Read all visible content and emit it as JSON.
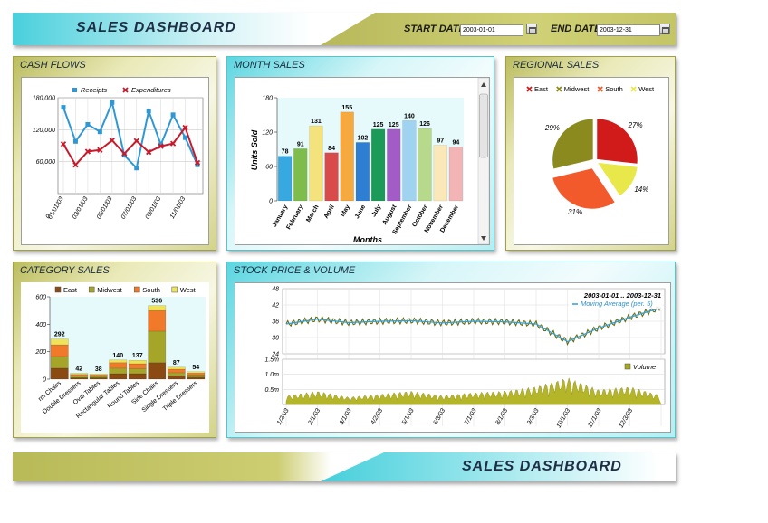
{
  "header": {
    "title": "SALES DASHBOARD",
    "start_label": "START DATE",
    "start_value": "2003-01-01",
    "end_label": "END DATE",
    "end_value": "2003-12-31"
  },
  "footer": {
    "title": "SALES DASHBOARD"
  },
  "panels": {
    "cash_flows": "CASH FLOWS",
    "month_sales": "MONTH SALES",
    "regional_sales": "REGIONAL SALES",
    "category_sales": "CATEGORY SALES",
    "stock": "STOCK PRICE & VOLUME"
  },
  "colors": {
    "olive": "#9c9c1e",
    "cyan": "#44ccd9",
    "receipts": "#2f98d4",
    "expenditures": "#c8192a"
  },
  "chart_data": [
    {
      "id": "cash_flows",
      "type": "line",
      "x": [
        "01/01/03",
        "02/01/03",
        "03/01/03",
        "04/01/03",
        "05/01/03",
        "06/01/03",
        "07/01/03",
        "08/01/03",
        "09/01/03",
        "10/01/03",
        "11/01/03",
        "12/01/03"
      ],
      "x_tick_labels": [
        "01/01/03",
        "03/01/03",
        "05/01/03",
        "07/01/03",
        "09/01/03",
        "11/01/03"
      ],
      "series": [
        {
          "name": "Receipts",
          "color": "#2f98d4",
          "values": [
            162000,
            98000,
            130000,
            116000,
            171000,
            72000,
            48000,
            155000,
            92000,
            148000,
            105000,
            54000
          ]
        },
        {
          "name": "Expenditures",
          "color": "#c8192a",
          "values": [
            93000,
            54000,
            79000,
            82000,
            100000,
            75000,
            99000,
            78000,
            89000,
            94000,
            124000,
            58000
          ]
        }
      ],
      "ylim": [
        0,
        180000
      ],
      "y_ticks": [
        "60,000",
        "120,000",
        "180,000"
      ],
      "y_zero_label": "0",
      "grid": true,
      "legend": "top"
    },
    {
      "id": "month_sales",
      "type": "bar",
      "categories": [
        "January",
        "February",
        "March",
        "April",
        "May",
        "June",
        "July",
        "August",
        "September",
        "October",
        "November",
        "December"
      ],
      "values": [
        78,
        91,
        131,
        84,
        155,
        102,
        125,
        125,
        140,
        126,
        97,
        94
      ],
      "colors": [
        "#37a9e0",
        "#7ebd4b",
        "#f4e27c",
        "#d94b4b",
        "#f5a93f",
        "#2e7fd3",
        "#1c9a58",
        "#a35cc6",
        "#9fd3f0",
        "#b6d98c",
        "#fbe8b8",
        "#f2b4b4"
      ],
      "ylabel": "Units Sold",
      "xlabel": "Months",
      "ylim": [
        0,
        180
      ],
      "y_ticks": [
        "0",
        "60",
        "120",
        "180"
      ]
    },
    {
      "id": "regional_sales",
      "type": "pie",
      "labels": [
        "East",
        "Midwest",
        "South",
        "West"
      ],
      "values": [
        27,
        29,
        31,
        14
      ],
      "slice_labels": [
        "27%",
        "29%",
        "31%",
        "14%"
      ],
      "colors": [
        "#d11b1b",
        "#8a8a1e",
        "#f25a2c",
        "#e8e84a"
      ],
      "legend": "top"
    },
    {
      "id": "category_sales",
      "type": "bar",
      "stacked": true,
      "categories": [
        "Arm Chairs",
        "Double Dressers",
        "Oval Tables",
        "Rectangular Tables",
        "Round Tables",
        "Side Chairs",
        "Single Dressers",
        "Triple Dressers"
      ],
      "category_labels": [
        "rm Chairs",
        "Double Dressers",
        "Oval Tables",
        "Rectangular Tables",
        "Round Tables",
        "Side Chairs",
        "Single Dressers",
        "Triple Dressers"
      ],
      "series": [
        {
          "name": "East",
          "color": "#8a4a12",
          "values": [
            80,
            10,
            10,
            40,
            40,
            120,
            25,
            15
          ]
        },
        {
          "name": "Midwest",
          "color": "#a5a52a",
          "values": [
            85,
            12,
            10,
            40,
            37,
            230,
            22,
            14
          ]
        },
        {
          "name": "South",
          "color": "#f07a2a",
          "values": [
            85,
            12,
            10,
            40,
            35,
            150,
            25,
            15
          ]
        },
        {
          "name": "West",
          "color": "#efe458",
          "values": [
            42,
            8,
            8,
            20,
            25,
            36,
            15,
            10
          ]
        }
      ],
      "totals": [
        292,
        42,
        38,
        140,
        137,
        536,
        87,
        54
      ],
      "ylim": [
        0,
        600
      ],
      "y_ticks": [
        "0",
        "200",
        "400",
        "600"
      ]
    },
    {
      "id": "stock_price",
      "type": "line",
      "annotation": "2003-01-01 .. 2003-12-31",
      "series": [
        {
          "name": "Moving Average (per. 5)",
          "color": "#2fa0d8",
          "x": [
            "1/2/03",
            "2/1/03",
            "3/1/03",
            "4/2/03",
            "5/1/03",
            "6/3/03",
            "7/1/03",
            "8/1/03",
            "9/3/03",
            "10/1/03",
            "11/1/03",
            "12/3/03",
            "12/31/03"
          ],
          "values": [
            35,
            36.8,
            35.5,
            36,
            36.2,
            35.4,
            36,
            35.8,
            35,
            28.5,
            33.5,
            37.5,
            41
          ]
        }
      ],
      "ylim": [
        24,
        48
      ],
      "y_ticks": [
        "24",
        "30",
        "36",
        "42",
        "48"
      ]
    },
    {
      "id": "stock_volume",
      "type": "area",
      "series": [
        {
          "name": "Volume",
          "color": "#a8a820",
          "x": [
            "1/2/03",
            "2/1/03",
            "3/1/03",
            "4/2/03",
            "5/1/03",
            "6/3/03",
            "7/1/03",
            "8/1/03",
            "9/3/03",
            "10/1/03",
            "11/1/03",
            "12/3/03",
            "12/31/03"
          ],
          "values": [
            300000,
            450000,
            250000,
            350000,
            450000,
            300000,
            400000,
            450000,
            600000,
            900000,
            500000,
            600000,
            300000
          ]
        }
      ],
      "ylim": [
        0,
        1500000
      ],
      "y_ticks": [
        "0.5m",
        "1.0m",
        "1.5m"
      ],
      "x_tick_labels": [
        "1/2/03",
        "2/1/03",
        "3/1/03",
        "4/2/03",
        "5/1/03",
        "6/3/03",
        "7/1/03",
        "8/1/03",
        "9/3/03",
        "10/1/03",
        "11/1/03",
        "12/3/03"
      ]
    }
  ]
}
